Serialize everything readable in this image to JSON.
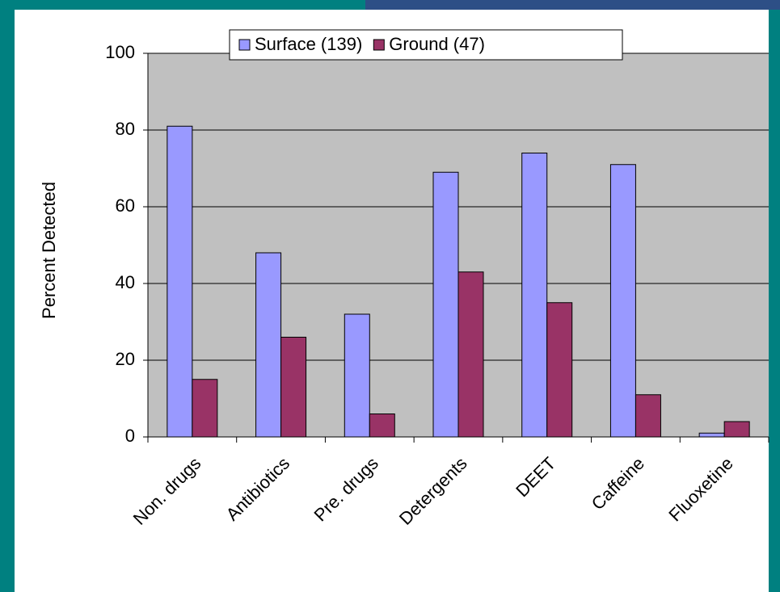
{
  "chart_data": {
    "type": "bar",
    "categories": [
      "Non. drugs",
      "Antibiotics",
      "Pre. drugs",
      "Detergents",
      "DEET",
      "Caffeine",
      "Fluoxetine"
    ],
    "series": [
      {
        "name": "Surface (139)",
        "color": "#9999ff",
        "values": [
          81,
          48,
          32,
          69,
          74,
          71,
          1
        ]
      },
      {
        "name": "Ground (47)",
        "color": "#993366",
        "values": [
          15,
          26,
          6,
          43,
          35,
          11,
          4
        ]
      }
    ],
    "y_label": "Percent Detected",
    "ylim": [
      0,
      100
    ],
    "yticks": [
      0,
      20,
      40,
      60,
      80,
      100
    ],
    "grid": true,
    "legend": "top"
  }
}
